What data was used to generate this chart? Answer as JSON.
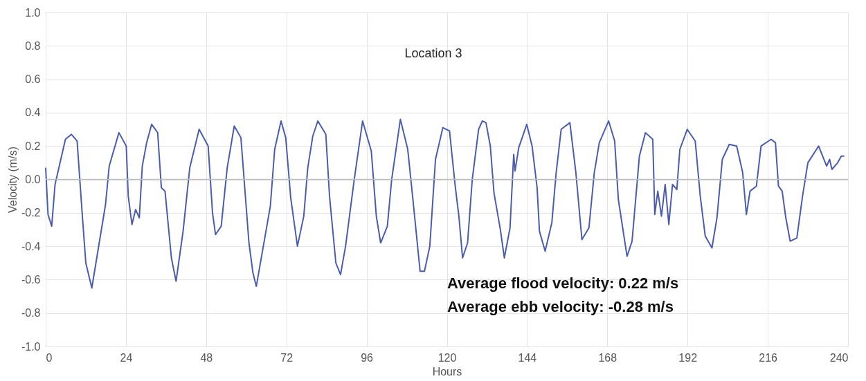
{
  "chart_data": {
    "type": "line",
    "title": "Location 3",
    "xlabel": "Hours",
    "ylabel": "Velocity (m/s)",
    "annotations": [
      "Average flood velocity:  0.22 m/s",
      "Average ebb velocity:     -0.28 m/s"
    ],
    "xlim": [
      0,
      240
    ],
    "xticks": [
      0,
      24,
      48,
      72,
      96,
      120,
      144,
      168,
      192,
      216,
      240
    ],
    "ylim": [
      -1,
      1
    ],
    "yticks": [
      {
        "value": -1,
        "label": "-1.0"
      },
      -0.8,
      -0.6,
      -0.4,
      -0.2,
      {
        "value": 0,
        "label": "0.0"
      },
      0.2,
      0.4,
      0.6,
      0.8,
      {
        "value": 1,
        "label": "1.0"
      }
    ],
    "grid": true,
    "legend": false,
    "marker": "none",
    "line_style": "solid",
    "series": [
      {
        "color": "#4a5cb0",
        "x": [
          0,
          0.7,
          1.8,
          2.8,
          5.9,
          7.7,
          9.4,
          10.9,
          12,
          13.8,
          17.9,
          19,
          21.9,
          24.1,
          24.7,
          25.8,
          26.9,
          28,
          28.9,
          30.2,
          31.7,
          33.5,
          34.6,
          35.7,
          37.6,
          39,
          41.1,
          43.1,
          45.9,
          48.6,
          49.9,
          50.8,
          52.5,
          54.3,
          56.4,
          58.4,
          60.8,
          62,
          63,
          67.2,
          68.5,
          70.4,
          71.8,
          73.3,
          75.3,
          77.2,
          78.4,
          79.9,
          81.4,
          83.8,
          84.9,
          86.8,
          88.2,
          89.7,
          92.3,
          94.8,
          97.4,
          98.9,
          100.2,
          102.2,
          103.5,
          106.1,
          108.3,
          109.8,
          112,
          113.3,
          114.9,
          116.6,
          118.8,
          120.8,
          122.5,
          123.6,
          124.7,
          126.2,
          127.6,
          129.5,
          130.6,
          131.7,
          133,
          134.1,
          136,
          137.2,
          138.9,
          140,
          140.4,
          141.5,
          143.9,
          145.5,
          147,
          147.7,
          149.4,
          151.4,
          152.7,
          154.2,
          156.8,
          158.6,
          160.4,
          162.5,
          164.1,
          165.6,
          168.4,
          170.2,
          171.3,
          173.9,
          175.4,
          177.6,
          179.4,
          181.6,
          182.2,
          183.1,
          184.2,
          185.3,
          186.4,
          187.5,
          188.8,
          189.7,
          191.9,
          194.3,
          195.8,
          197.3,
          199.3,
          200.8,
          202.4,
          204.5,
          206.7,
          208.5,
          209.6,
          210.7,
          212.6,
          214,
          217,
          218.3,
          219.2,
          220.3,
          221.4,
          222.7,
          224.7,
          226.4,
          228,
          231.2,
          233.6,
          234.5,
          235.2,
          236.9,
          238,
          238.9
        ],
        "values": [
          0.07,
          -0.21,
          -0.28,
          -0.03,
          0.24,
          0.27,
          0.23,
          -0.2,
          -0.5,
          -0.65,
          -0.15,
          0.08,
          0.28,
          0.2,
          -0.1,
          -0.27,
          -0.18,
          -0.23,
          0.08,
          0.22,
          0.33,
          0.28,
          -0.05,
          -0.07,
          -0.47,
          -0.61,
          -0.31,
          0.07,
          0.3,
          0.2,
          -0.2,
          -0.33,
          -0.28,
          0.07,
          0.32,
          0.25,
          -0.38,
          -0.56,
          -0.64,
          -0.16,
          0.18,
          0.35,
          0.25,
          -0.11,
          -0.4,
          -0.22,
          0.07,
          0.26,
          0.35,
          0.27,
          -0.1,
          -0.5,
          -0.57,
          -0.4,
          0,
          0.35,
          0.17,
          -0.22,
          -0.38,
          -0.28,
          0,
          0.36,
          0.18,
          -0.11,
          -0.55,
          -0.55,
          -0.4,
          0.12,
          0.31,
          0.29,
          -0.04,
          -0.22,
          -0.47,
          -0.38,
          0,
          0.3,
          0.35,
          0.34,
          0.2,
          -0.08,
          -0.3,
          -0.47,
          -0.29,
          0.15,
          0.05,
          0.19,
          0.33,
          0.2,
          -0.05,
          -0.31,
          -0.43,
          -0.26,
          0.04,
          0.3,
          0.34,
          0.04,
          -0.36,
          -0.29,
          0.04,
          0.22,
          0.35,
          0.23,
          -0.12,
          -0.46,
          -0.37,
          0.14,
          0.28,
          0.24,
          -0.21,
          -0.07,
          -0.22,
          -0.03,
          -0.27,
          -0.03,
          -0.06,
          0.18,
          0.3,
          0.23,
          -0.1,
          -0.34,
          -0.41,
          -0.23,
          0.12,
          0.21,
          0.2,
          0.04,
          -0.21,
          -0.07,
          -0.04,
          0.2,
          0.24,
          0.22,
          -0.04,
          -0.07,
          -0.23,
          -0.37,
          -0.35,
          -0.1,
          0.1,
          0.2,
          0.08,
          0.12,
          0.06,
          0.1,
          0.14,
          0.14
        ]
      }
    ]
  }
}
